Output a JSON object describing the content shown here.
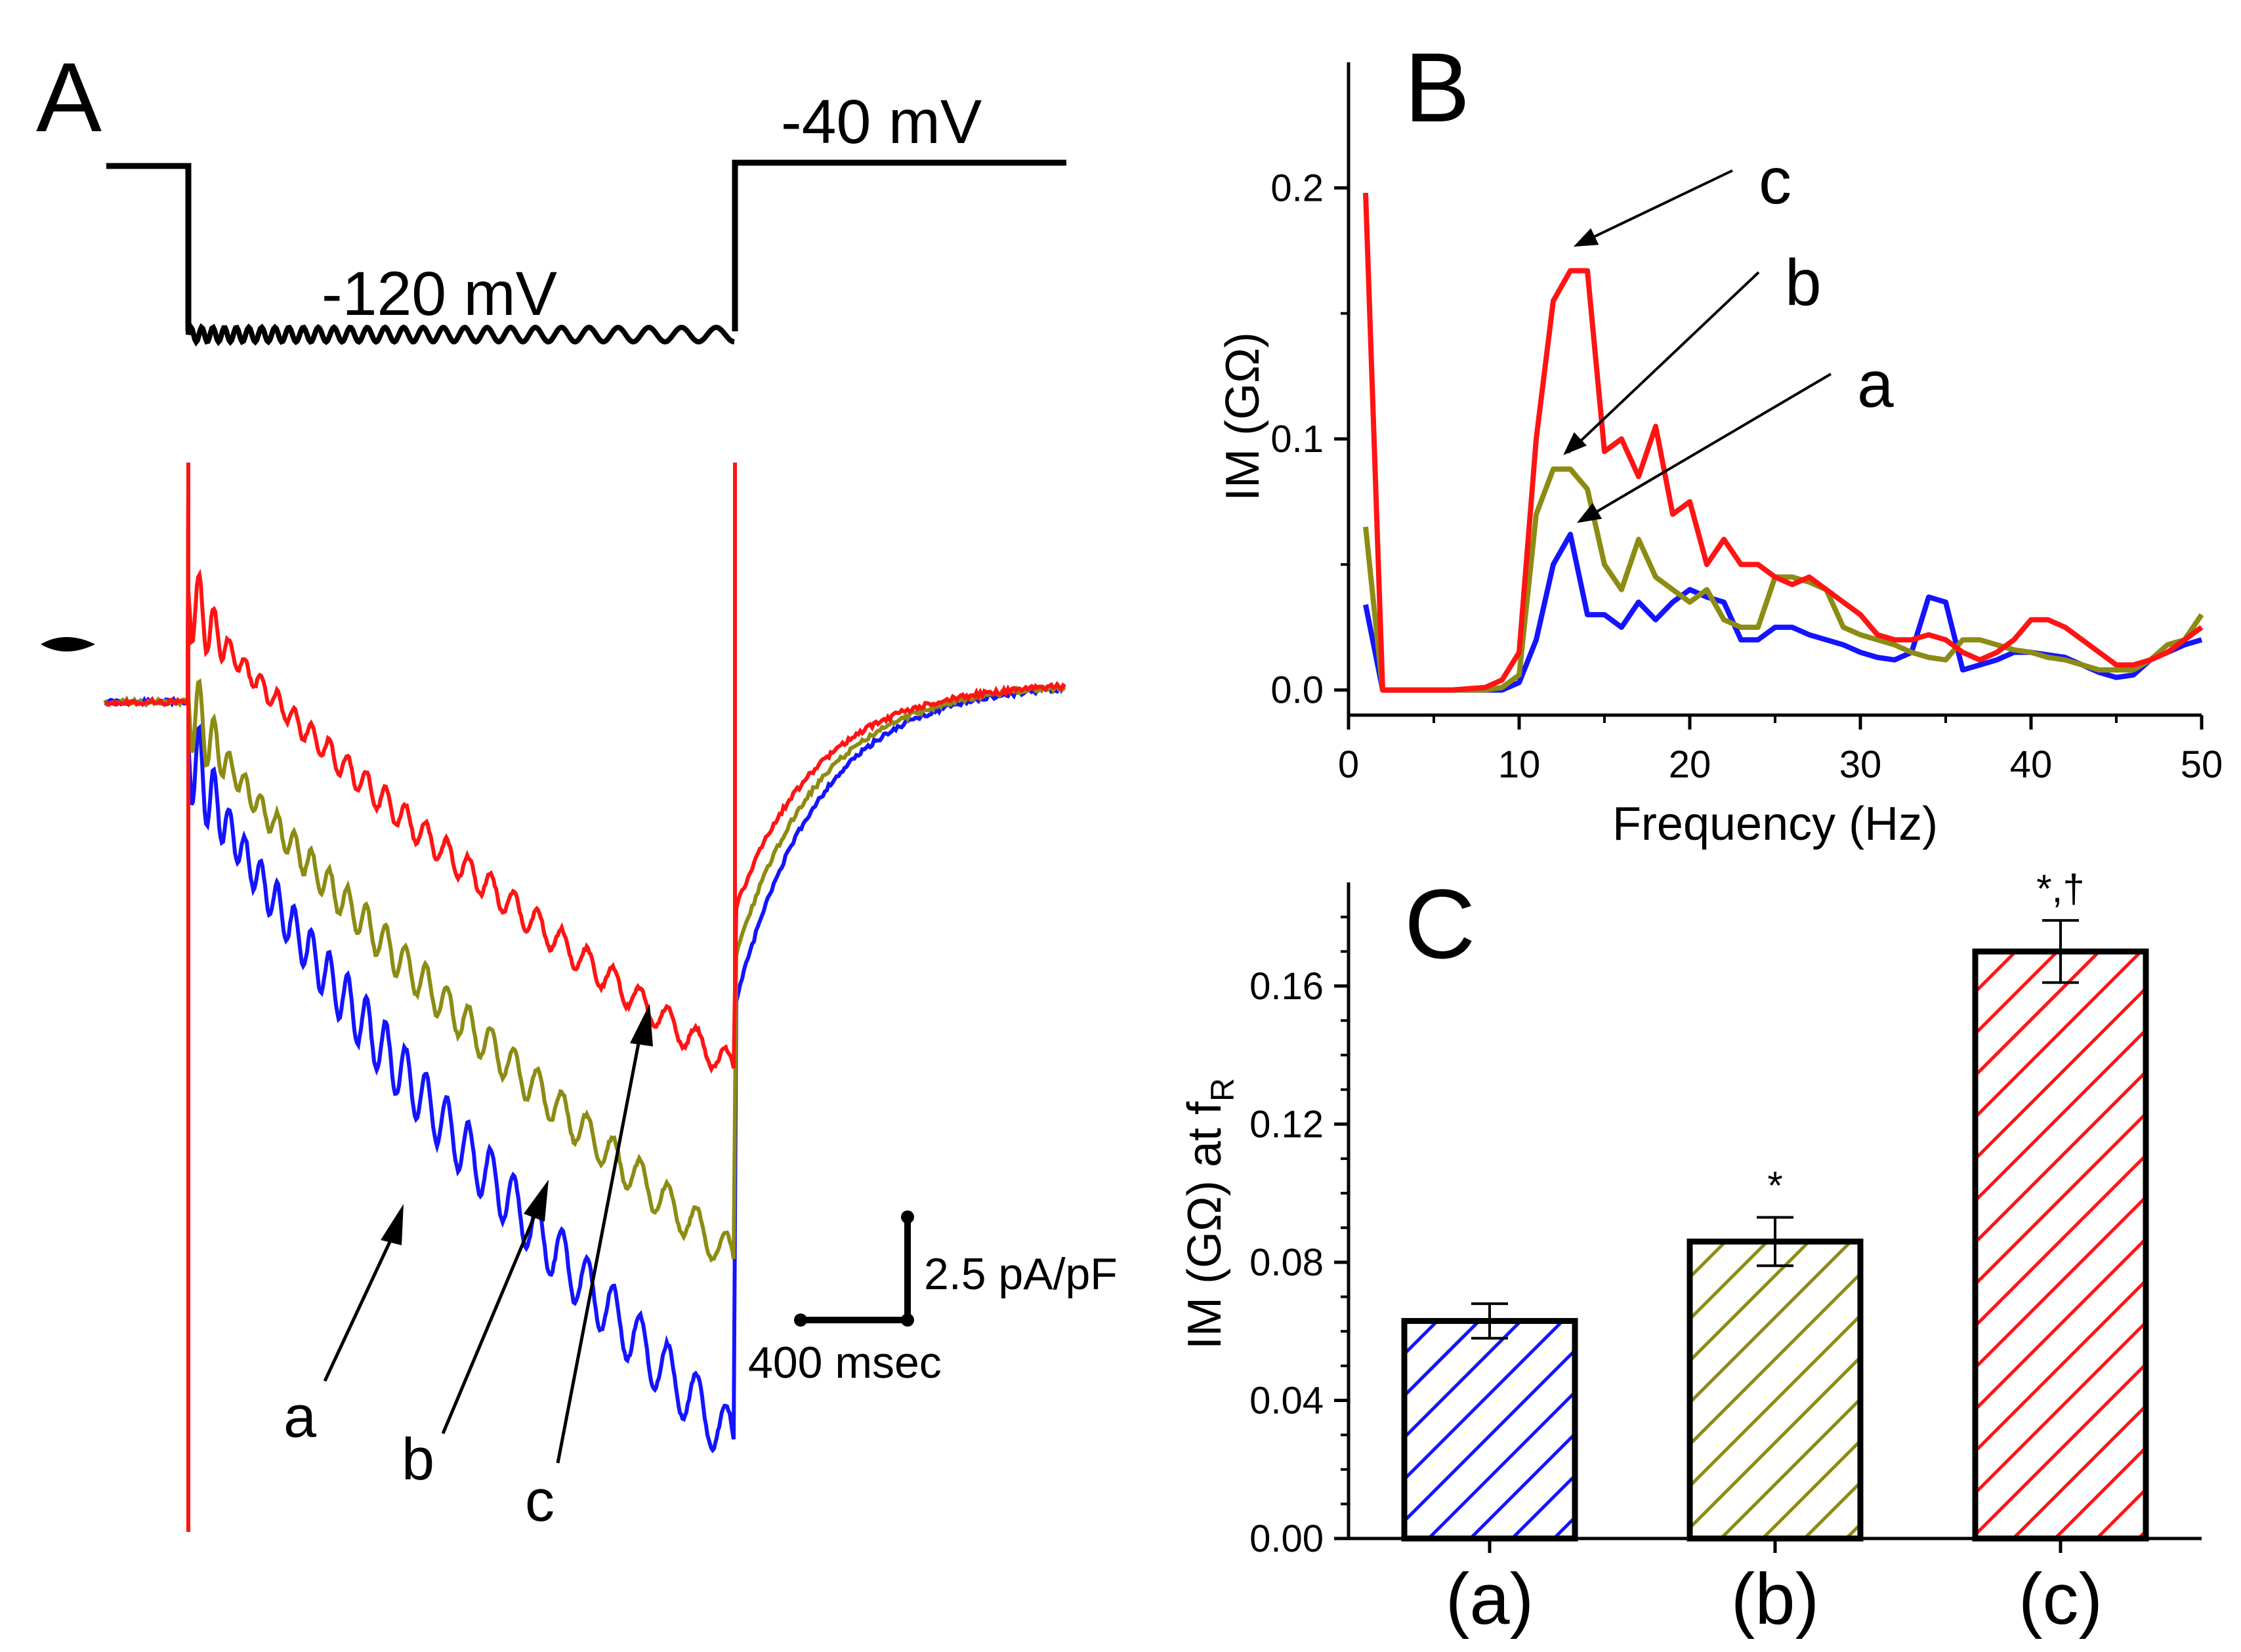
{
  "panels": {
    "a": "A",
    "b": "B",
    "c": "C"
  },
  "colors": {
    "a": "#1414ff",
    "b": "#8c8c14",
    "c": "#ff1414",
    "axis": "#000000"
  },
  "panel_a": {
    "protocol": {
      "hold_label": "-40 mV",
      "step_label": "-120 mV"
    },
    "scale_bar": {
      "current_label": "2.5 pA/pF",
      "time_label": "400 msec"
    },
    "trace_labels": [
      "a",
      "b",
      "c"
    ],
    "zero_current_marker": "zero-current level"
  },
  "chart_data": [
    {
      "panel": "B",
      "type": "line",
      "title": "",
      "xlabel": "Frequency (Hz)",
      "ylabel": "IM (GΩ)",
      "xlim": [
        0,
        50
      ],
      "ylim": [
        -0.01,
        0.25
      ],
      "xticks": [
        "0",
        "10",
        "20",
        "30",
        "40",
        "50"
      ],
      "yticks": [
        "0.0",
        "0.1",
        "0.2"
      ],
      "x": [
        1,
        2,
        4,
        6,
        8,
        9,
        10,
        11,
        12,
        13,
        14,
        15,
        16,
        17,
        18,
        19,
        20,
        21,
        22,
        23,
        24,
        25,
        26,
        27,
        28,
        29,
        30,
        31,
        32,
        33,
        34,
        35,
        36,
        37,
        38,
        39,
        40,
        41,
        42,
        43,
        44,
        45,
        46,
        47,
        48,
        49,
        50
      ],
      "series": [
        {
          "name": "a",
          "values": [
            0.034,
            0.0,
            0.0,
            0.0,
            0.0,
            0.0,
            0.003,
            0.02,
            0.05,
            0.062,
            0.03,
            0.03,
            0.025,
            0.035,
            0.028,
            0.035,
            0.04,
            0.037,
            0.035,
            0.02,
            0.02,
            0.025,
            0.025,
            0.022,
            0.02,
            0.018,
            0.015,
            0.013,
            0.012,
            0.015,
            0.037,
            0.035,
            0.008,
            0.01,
            0.012,
            0.015,
            0.015,
            0.014,
            0.013,
            0.01,
            0.007,
            0.005,
            0.006,
            0.012,
            0.015,
            0.018,
            0.02
          ]
        },
        {
          "name": "b",
          "values": [
            0.065,
            0.0,
            0.0,
            0.0,
            0.0,
            0.001,
            0.006,
            0.07,
            0.088,
            0.088,
            0.08,
            0.05,
            0.04,
            0.06,
            0.045,
            0.04,
            0.035,
            0.04,
            0.028,
            0.025,
            0.025,
            0.045,
            0.045,
            0.043,
            0.04,
            0.025,
            0.022,
            0.02,
            0.018,
            0.015,
            0.013,
            0.012,
            0.02,
            0.02,
            0.018,
            0.016,
            0.015,
            0.013,
            0.012,
            0.01,
            0.008,
            0.008,
            0.008,
            0.012,
            0.018,
            0.02,
            0.03
          ]
        },
        {
          "name": "c",
          "values": [
            0.198,
            0.0,
            0.0,
            0.0,
            0.001,
            0.004,
            0.015,
            0.1,
            0.155,
            0.167,
            0.167,
            0.095,
            0.1,
            0.085,
            0.105,
            0.07,
            0.075,
            0.05,
            0.06,
            0.05,
            0.05,
            0.045,
            0.042,
            0.045,
            0.04,
            0.035,
            0.03,
            0.022,
            0.02,
            0.02,
            0.022,
            0.02,
            0.015,
            0.012,
            0.015,
            0.02,
            0.028,
            0.028,
            0.025,
            0.02,
            0.015,
            0.01,
            0.01,
            0.012,
            0.015,
            0.02,
            0.025
          ]
        }
      ],
      "annotations": [
        {
          "label": "c",
          "x": 12.8,
          "y": 0.175
        },
        {
          "label": "b",
          "x": 12.2,
          "y": 0.092
        },
        {
          "label": "a",
          "x": 13.0,
          "y": 0.065
        }
      ]
    },
    {
      "panel": "C",
      "type": "bar",
      "title": "",
      "xlabel": "",
      "ylabel": "IM (GΩ) at f",
      "ylabel_sub": "R",
      "ylim": [
        0,
        0.19
      ],
      "yticks": [
        "0.00",
        "0.04",
        "0.08",
        "0.12",
        "0.16"
      ],
      "categories": [
        "(a)",
        "(b)",
        "(c)"
      ],
      "values": [
        0.063,
        0.086,
        0.17
      ],
      "errors": [
        0.005,
        0.007,
        0.009
      ],
      "significance": [
        "",
        "*",
        "*,†"
      ]
    }
  ]
}
